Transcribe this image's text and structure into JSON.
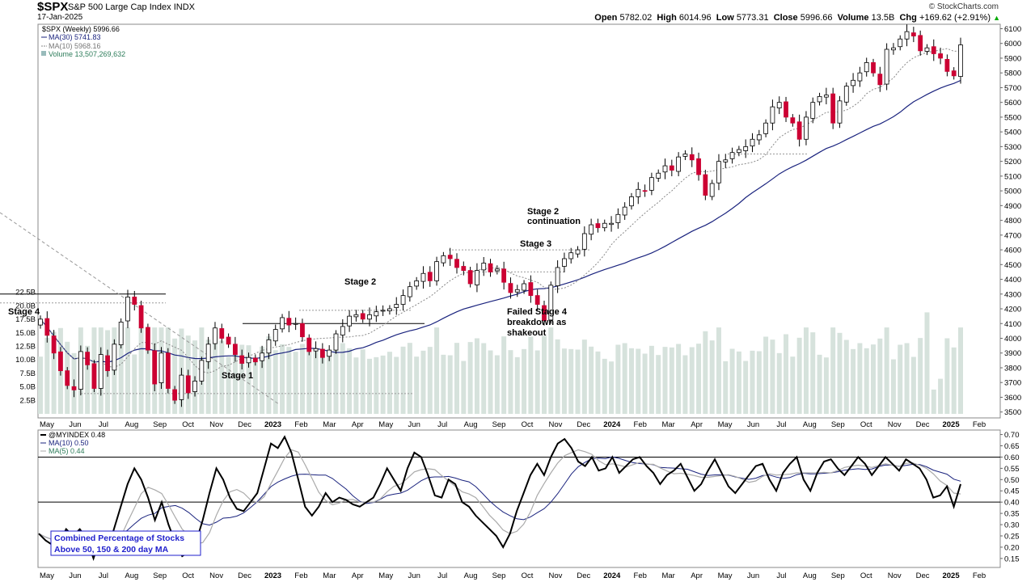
{
  "header": {
    "symbol": "$SPX",
    "name": "S&P 500 Large Cap Index",
    "exchange": "INDX",
    "date": "17-Jan-2025",
    "copyright": "© StockCharts.com",
    "open_label": "Open",
    "open": "5782.02",
    "high_label": "High",
    "high": "6014.96",
    "low_label": "Low",
    "low": "5773.31",
    "close_label": "Close",
    "close": "5996.66",
    "volume_label": "Volume",
    "volume": "13.5B",
    "chg_label": "Chg",
    "chg": "+169.62 (+2.91%)",
    "chg_arrow_icon": "up-triangle-icon"
  },
  "legend_upper": [
    "$SPX (Weekly) 5996.66",
    "MA(30) 5741.83",
    "MA(10) 5968.16",
    "Volume 13,507,269,632"
  ],
  "legend_lower": [
    "@MYINDEX 0.48",
    "MA(10) 0.50",
    "MA(5) 0.44"
  ],
  "annotations": {
    "stage4": "Stage 4",
    "stage1": "Stage 1",
    "stage2": "Stage 2",
    "stage2cont_1": "Stage 2",
    "stage2cont_2": "continuation",
    "stage3": "Stage 3",
    "failed_1": "Failed Stage 4",
    "failed_2": "breakdown as",
    "failed_3": "shakeout",
    "box_1": "Combined Percentage of Stocks",
    "box_2": "Above 50, 150 & 200 day MA"
  },
  "colors": {
    "up_candle": "#ffffff",
    "down_candle": "#cc0033",
    "ma30": "#1a237e",
    "ma10": "#999999",
    "volume": "#d6e2dc",
    "box_text": "#1f1fcc"
  },
  "chart_data": [
    {
      "type": "candlestick",
      "title": "$SPX S&P 500 Large Cap Index INDX",
      "period": "weekly",
      "x_ticks": [
        "May",
        "Jun",
        "Jul",
        "Aug",
        "Sep",
        "Oct",
        "Nov",
        "Dec",
        "2023",
        "Feb",
        "Mar",
        "Apr",
        "May",
        "Jun",
        "Jul",
        "Aug",
        "Sep",
        "Oct",
        "Nov",
        "Dec",
        "2024",
        "Feb",
        "Mar",
        "Apr",
        "May",
        "Jun",
        "Jul",
        "Aug",
        "Sep",
        "Oct",
        "Nov",
        "Dec",
        "2025",
        "Feb"
      ],
      "y_ticks": [
        3500,
        3600,
        3700,
        3800,
        3900,
        4000,
        4100,
        4200,
        4300,
        4400,
        4500,
        4600,
        4700,
        4800,
        4900,
        5000,
        5100,
        5200,
        5300,
        5400,
        5500,
        5600,
        5700,
        5800,
        5900,
        6000,
        6100
      ],
      "ylim": [
        3460,
        6130
      ],
      "volume_ticks": [
        "2.5B",
        "5.0B",
        "7.5B",
        "10.0B",
        "12.5B",
        "15.0B",
        "17.5B",
        "20.0B",
        "22.5B"
      ],
      "volume_ylim": [
        0,
        25
      ],
      "close": [
        4130,
        4020,
        3900,
        3780,
        3680,
        3650,
        3910,
        3820,
        3660,
        3890,
        3780,
        3960,
        4110,
        4280,
        4230,
        4070,
        3920,
        3690,
        3900,
        3660,
        3580,
        3750,
        3630,
        3710,
        3850,
        3960,
        4070,
        4000,
        3960,
        3890,
        3830,
        3870,
        3840,
        3900,
        3990,
        4060,
        4140,
        4090,
        4100,
        4010,
        3910,
        3930,
        3870,
        3920,
        4030,
        4080,
        4150,
        4160,
        4130,
        4160,
        4180,
        4190,
        4200,
        4230,
        4290,
        4350,
        4390,
        4440,
        4390,
        4520,
        4560,
        4540,
        4480,
        4460,
        4370,
        4460,
        4510,
        4450,
        4470,
        4380,
        4310,
        4330,
        4370,
        4290,
        4230,
        4120,
        4360,
        4480,
        4540,
        4580,
        4600,
        4710,
        4770,
        4750,
        4780,
        4780,
        4840,
        4890,
        4960,
        5010,
        5000,
        5090,
        5120,
        5170,
        5140,
        5230,
        5250,
        5210,
        5110,
        4970,
        5050,
        5200,
        5210,
        5260,
        5280,
        5300,
        5350,
        5380,
        5460,
        5570,
        5600,
        5500,
        5460,
        5350,
        5500,
        5600,
        5640,
        5650,
        5460,
        5610,
        5710,
        5750,
        5800,
        5870,
        5800,
        5720,
        5960,
        5970,
        6030,
        6080,
        6050,
        5950,
        5970,
        5930,
        5900,
        5810,
        5780,
        5990
      ],
      "ma30_y_range": [
        3890,
        5741.83
      ],
      "ma10_last": 5968.16,
      "volume_series_units": "B",
      "annotations": [
        "Stage 4",
        "Stage 1",
        "Stage 2",
        "Stage 2 continuation",
        "Stage 3",
        "Failed Stage 4 breakdown as shakeout"
      ]
    },
    {
      "type": "line",
      "title": "@MYINDEX",
      "x_ticks": [
        "May",
        "Jun",
        "Jul",
        "Aug",
        "Sep",
        "Oct",
        "Nov",
        "Dec",
        "2023",
        "Feb",
        "Mar",
        "Apr",
        "May",
        "Jun",
        "Jul",
        "Aug",
        "Sep",
        "Oct",
        "Nov",
        "Dec",
        "2024",
        "Feb",
        "Mar",
        "Apr",
        "May",
        "Jun",
        "Jul",
        "Aug",
        "Sep",
        "Oct",
        "Nov",
        "Dec",
        "2025",
        "Feb"
      ],
      "y_ticks": [
        0.15,
        0.2,
        0.25,
        0.3,
        0.35,
        0.4,
        0.45,
        0.5,
        0.55,
        0.6,
        0.65,
        0.7
      ],
      "ylim": [
        0.11,
        0.72
      ],
      "reference_lines": [
        0.4,
        0.6
      ],
      "series": [
        {
          "name": "@MYINDEX",
          "last": 0.48,
          "values": [
            0.26,
            0.23,
            0.21,
            0.22,
            0.28,
            0.25,
            0.28,
            0.24,
            0.15,
            0.24,
            0.18,
            0.28,
            0.38,
            0.48,
            0.55,
            0.5,
            0.42,
            0.32,
            0.4,
            0.3,
            0.22,
            0.16,
            0.18,
            0.22,
            0.32,
            0.44,
            0.55,
            0.5,
            0.42,
            0.37,
            0.36,
            0.4,
            0.44,
            0.55,
            0.66,
            0.64,
            0.69,
            0.62,
            0.5,
            0.38,
            0.34,
            0.38,
            0.44,
            0.4,
            0.42,
            0.41,
            0.39,
            0.38,
            0.4,
            0.42,
            0.48,
            0.55,
            0.5,
            0.45,
            0.55,
            0.62,
            0.6,
            0.52,
            0.43,
            0.42,
            0.5,
            0.48,
            0.4,
            0.38,
            0.34,
            0.31,
            0.28,
            0.25,
            0.2,
            0.26,
            0.36,
            0.44,
            0.52,
            0.57,
            0.52,
            0.6,
            0.66,
            0.68,
            0.64,
            0.58,
            0.56,
            0.6,
            0.54,
            0.55,
            0.6,
            0.53,
            0.56,
            0.59,
            0.6,
            0.56,
            0.53,
            0.48,
            0.52,
            0.54,
            0.57,
            0.51,
            0.45,
            0.48,
            0.54,
            0.59,
            0.53,
            0.47,
            0.44,
            0.48,
            0.52,
            0.56,
            0.57,
            0.5,
            0.45,
            0.53,
            0.57,
            0.6,
            0.5,
            0.45,
            0.53,
            0.58,
            0.59,
            0.55,
            0.52,
            0.56,
            0.6,
            0.57,
            0.52,
            0.56,
            0.6,
            0.57,
            0.54,
            0.59,
            0.57,
            0.55,
            0.5,
            0.42,
            0.43,
            0.47,
            0.38,
            0.48
          ]
        },
        {
          "name": "MA(10)",
          "last": 0.5
        },
        {
          "name": "MA(5)",
          "last": 0.44
        }
      ]
    }
  ]
}
